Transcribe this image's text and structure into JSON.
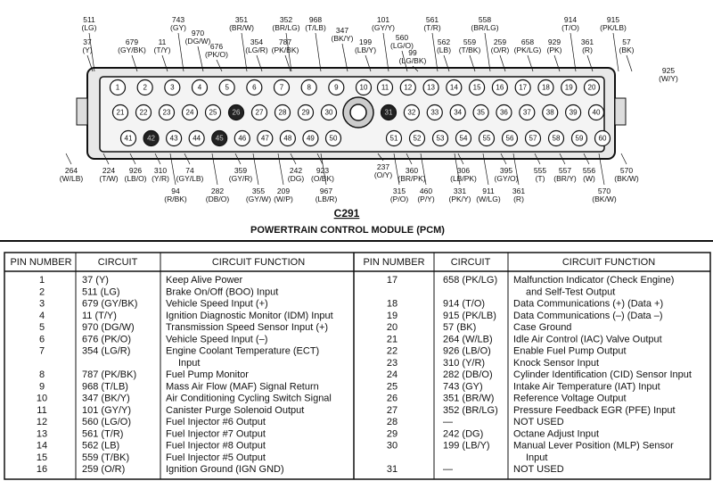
{
  "diagram": {
    "connector": "C291",
    "title": "POWERTRAIN CONTROL MODULE (PCM)",
    "pins": [
      1,
      2,
      3,
      4,
      5,
      6,
      7,
      8,
      9,
      10,
      11,
      12,
      13,
      14,
      15,
      16,
      17,
      18,
      19,
      20,
      21,
      22,
      23,
      24,
      25,
      26,
      27,
      28,
      29,
      30,
      31,
      32,
      33,
      34,
      35,
      36,
      37,
      38,
      39,
      40,
      41,
      42,
      43,
      44,
      45,
      46,
      47,
      48,
      49,
      50,
      51,
      52,
      53,
      54,
      55,
      56,
      57,
      58,
      59,
      60
    ],
    "top_labels": [
      [
        "511",
        "(LG)"
      ],
      [
        "37",
        "(Y)"
      ],
      [
        "679",
        "(GY/BK)"
      ],
      [
        "743",
        "(GY)"
      ],
      [
        "11",
        "(T/Y)"
      ],
      [
        "970",
        "(DG/W)"
      ],
      [
        "676",
        "(PK/O)"
      ],
      [
        "351",
        "(BR/W)"
      ],
      [
        "354",
        "(LG/R)"
      ],
      [
        "352",
        "(BR/LG)"
      ],
      [
        "787",
        "(PK/BK)"
      ],
      [
        "968",
        "(T/LB)"
      ],
      [
        "347",
        "(BK/Y)"
      ],
      [
        "199",
        "(LB/Y)"
      ],
      [
        "101",
        "(GY/Y)"
      ],
      [
        "560",
        "(LG/O)"
      ],
      [
        "99",
        "(LG/BK)"
      ],
      [
        "561",
        "(T/R)"
      ],
      [
        "562",
        "(LB)"
      ],
      [
        "559",
        "(T/BK)"
      ],
      [
        "558",
        "(BR/LG)"
      ],
      [
        "259",
        "(O/R)"
      ],
      [
        "658",
        "(PK/LG)"
      ],
      [
        "929",
        "(PK)"
      ],
      [
        "914",
        "(T/O)"
      ],
      [
        "915",
        "(PK/LB)"
      ],
      [
        "361",
        "(R)"
      ],
      [
        "57",
        "(BK)"
      ],
      [
        "925",
        "(W/Y)"
      ]
    ],
    "bottom_labels": [
      [
        "264",
        "(W/LB)"
      ],
      [
        "224",
        "(T/W)"
      ],
      [
        "926",
        "(LB/O)"
      ],
      [
        "310",
        "(Y/R)"
      ],
      [
        "74",
        "(GY/LB)"
      ],
      [
        "94",
        "(R/BK)"
      ],
      [
        "282",
        "(DB/O)"
      ],
      [
        "359",
        "(GY/R)"
      ],
      [
        "355",
        "(GY/W)"
      ],
      [
        "209",
        "(W/P)"
      ],
      [
        "242",
        "(DG)"
      ],
      [
        "923",
        "(O/BK)"
      ],
      [
        "967",
        "(LB/R)"
      ],
      [
        "237",
        "(O/Y)"
      ],
      [
        "360",
        "(BR/PK)"
      ],
      [
        "315",
        "(P/O)"
      ],
      [
        "460",
        "(P/Y)"
      ],
      [
        "306",
        "(LB/PK)"
      ],
      [
        "331",
        "(PK/Y)"
      ],
      [
        "911",
        "(W/LG)"
      ],
      [
        "395",
        "(GY/O)"
      ],
      [
        "361",
        "(R)"
      ],
      [
        "555",
        "(T)"
      ],
      [
        "557",
        "(BR/Y)"
      ],
      [
        "556",
        "(W)"
      ],
      [
        "570",
        "(BK/W)"
      ],
      [
        "570",
        "(BK/W)"
      ]
    ]
  },
  "table": {
    "headers": [
      "PIN NUMBER",
      "CIRCUIT",
      "CIRCUIT FUNCTION",
      "PIN NUMBER",
      "CIRCUIT",
      "CIRCUIT FUNCTION"
    ],
    "left_rows": [
      {
        "pin": 1,
        "circuit": "37 (Y)",
        "function": [
          "Keep Alive Power"
        ]
      },
      {
        "pin": 2,
        "circuit": "511 (LG)",
        "function": [
          "Brake On/Off (BOO) Input"
        ]
      },
      {
        "pin": 3,
        "circuit": "679 (GY/BK)",
        "function": [
          "Vehicle Speed Input (+)"
        ]
      },
      {
        "pin": 4,
        "circuit": "11 (T/Y)",
        "function": [
          "Ignition Diagnostic Monitor (IDM) Input"
        ]
      },
      {
        "pin": 5,
        "circuit": "970 (DG/W)",
        "function": [
          "Transmission Speed Sensor Input (+)"
        ]
      },
      {
        "pin": 6,
        "circuit": "676 (PK/O)",
        "function": [
          "Vehicle Speed Input (–)"
        ]
      },
      {
        "pin": 7,
        "circuit": "354 (LG/R)",
        "function": [
          "Engine Coolant Temperature (ECT)",
          "Input"
        ]
      },
      {
        "pin": 8,
        "circuit": "787 (PK/BK)",
        "function": [
          "Fuel Pump Monitor"
        ]
      },
      {
        "pin": 9,
        "circuit": "968 (T/LB)",
        "function": [
          "Mass Air Flow (MAF) Signal Return"
        ]
      },
      {
        "pin": 10,
        "circuit": "347 (BK/Y)",
        "function": [
          "Air Conditioning Cycling Switch Signal"
        ]
      },
      {
        "pin": 11,
        "circuit": "101 (GY/Y)",
        "function": [
          "Canister Purge Solenoid Output"
        ]
      },
      {
        "pin": 12,
        "circuit": "560 (LG/O)",
        "function": [
          "Fuel Injector #6 Output"
        ]
      },
      {
        "pin": 13,
        "circuit": "561 (T/R)",
        "function": [
          "Fuel Injector #7 Output"
        ]
      },
      {
        "pin": 14,
        "circuit": "562 (LB)",
        "function": [
          "Fuel Injector #8 Output"
        ]
      },
      {
        "pin": 15,
        "circuit": "559 (T/BK)",
        "function": [
          "Fuel Injector #5 Output"
        ]
      },
      {
        "pin": 16,
        "circuit": "259 (O/R)",
        "function": [
          "Ignition Ground (IGN GND)"
        ]
      }
    ],
    "right_rows": [
      {
        "pin": 17,
        "circuit": "658 (PK/LG)",
        "function": [
          "Malfunction Indicator (Check Engine)",
          "and Self-Test Output"
        ]
      },
      {
        "pin": 18,
        "circuit": "914 (T/O)",
        "function": [
          "Data Communications (+) (Data +)"
        ]
      },
      {
        "pin": 19,
        "circuit": "915 (PK/LB)",
        "function": [
          "Data Communications (–) (Data –)"
        ]
      },
      {
        "pin": 20,
        "circuit": "57 (BK)",
        "function": [
          "Case Ground"
        ]
      },
      {
        "pin": 21,
        "circuit": "264 (W/LB)",
        "function": [
          "Idle Air Control (IAC) Valve Output"
        ]
      },
      {
        "pin": 22,
        "circuit": "926 (LB/O)",
        "function": [
          "Enable Fuel Pump Output"
        ]
      },
      {
        "pin": 23,
        "circuit": "310 (Y/R)",
        "function": [
          "Knock Sensor Input"
        ]
      },
      {
        "pin": 24,
        "circuit": "282 (DB/O)",
        "function": [
          "Cylinder Identification (CID) Sensor Input"
        ]
      },
      {
        "pin": 25,
        "circuit": "743 (GY)",
        "function": [
          "Intake Air Temperature (IAT) Input"
        ]
      },
      {
        "pin": 26,
        "circuit": "351 (BR/W)",
        "function": [
          "Reference Voltage Output"
        ]
      },
      {
        "pin": 27,
        "circuit": "352 (BR/LG)",
        "function": [
          "Pressure Feedback EGR (PFE) Input"
        ]
      },
      {
        "pin": 28,
        "circuit": "—",
        "function": [
          "NOT USED"
        ]
      },
      {
        "pin": 29,
        "circuit": "242 (DG)",
        "function": [
          "Octane Adjust Input"
        ]
      },
      {
        "pin": 30,
        "circuit": "199 (LB/Y)",
        "function": [
          "Manual Lever Position (MLP) Sensor",
          "Input"
        ]
      },
      {
        "pin": 31,
        "circuit": "—",
        "function": [
          "NOT USED"
        ]
      }
    ]
  }
}
